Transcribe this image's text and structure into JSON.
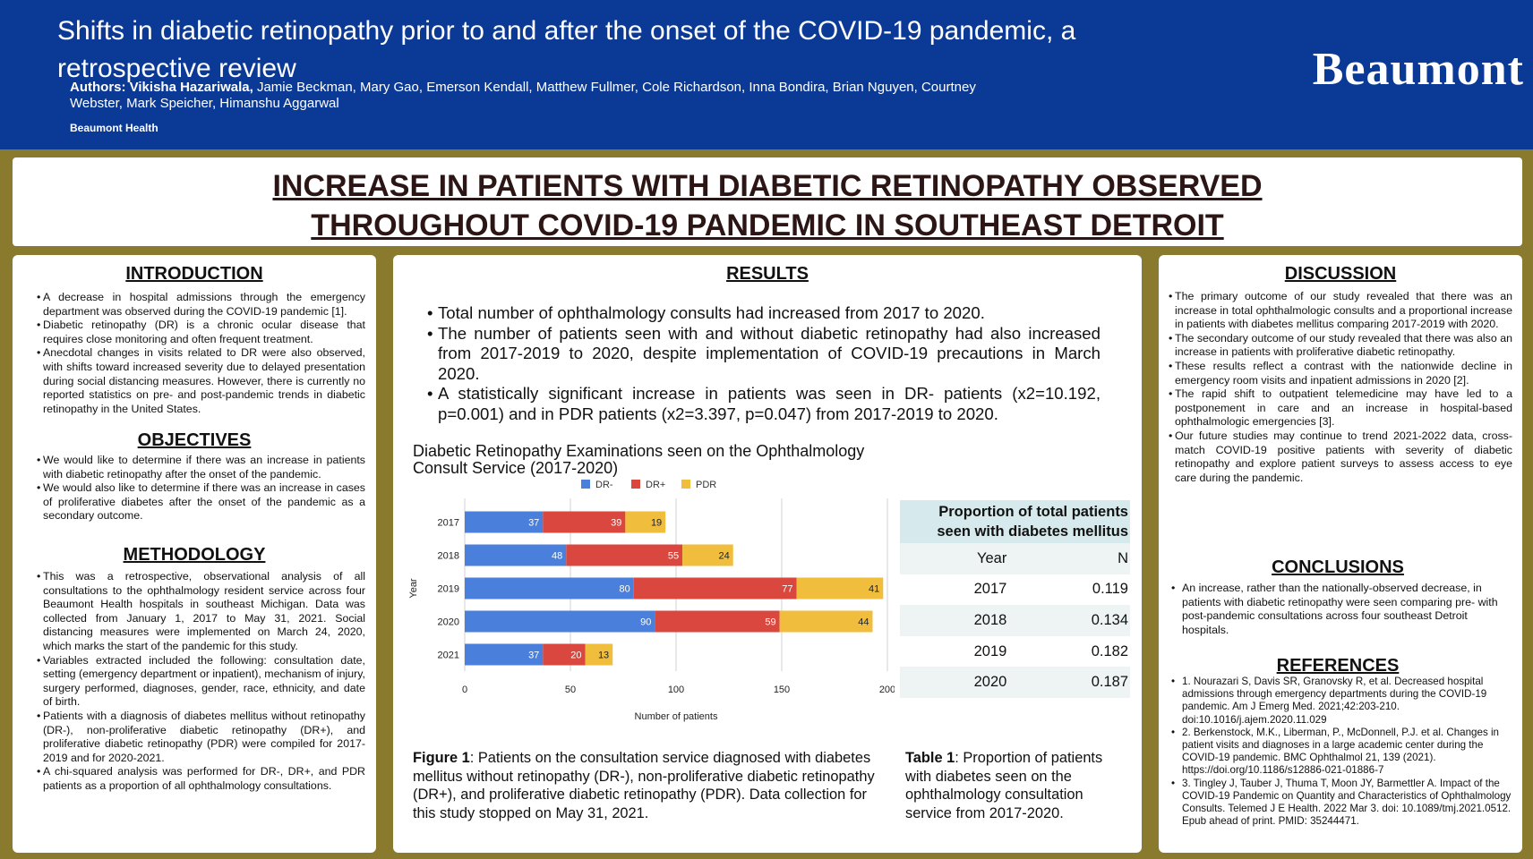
{
  "header": {
    "title": "Shifts in diabetic retinopathy prior to and after the onset of the COVID-19 pandemic, a retrospective review",
    "authors_label": "Authors: Vikisha Hazariwala,",
    "authors_rest": " Jamie Beckman, Mary Gao, Emerson Kendall, Matthew Fullmer, Cole Richardson, Inna Bondira, Brian Nguyen, Courtney Webster, Mark Speicher, Himanshu Aggarwal",
    "affiliation": "Beaumont Health",
    "logo_text": "Beaumont"
  },
  "banner": {
    "line1": "INCREASE IN PATIENTS WITH DIABETIC RETINOPATHY OBSERVED",
    "line2": "THROUGHOUT COVID-19 PANDEMIC IN SOUTHEAST DETROIT"
  },
  "introduction": {
    "heading": "INTRODUCTION",
    "items": [
      "A decrease in hospital admissions through the emergency department was observed during the COVID-19 pandemic [1].",
      "Diabetic retinopathy (DR) is a chronic ocular disease that requires close monitoring and often frequent treatment.",
      "Anecdotal changes in visits related to DR were also observed, with shifts toward increased severity due to delayed presentation during social distancing measures. However, there is currently no reported statistics on pre- and post-pandemic trends in diabetic retinopathy in the United States."
    ]
  },
  "objectives": {
    "heading": "OBJECTIVES",
    "items": [
      "We would like to determine if there was an increase in patients with diabetic retinopathy after the onset of the pandemic.",
      "We would also like to determine if there was an increase in cases of proliferative diabetes after the onset of the pandemic as a secondary outcome."
    ]
  },
  "methodology": {
    "heading": "METHODOLOGY",
    "items": [
      "This was a retrospective, observational analysis of all consultations to the ophthalmology resident service across four Beaumont Health hospitals in southeast Michigan. Data was collected from January 1, 2017 to May 31, 2021. Social distancing measures were implemented on March 24, 2020, which marks the start of the pandemic for this study.",
      "Variables extracted included the following: consultation date, setting (emergency department or inpatient), mechanism of injury, surgery performed, diagnoses, gender, race, ethnicity, and date of birth.",
      "Patients with a diagnosis of diabetes mellitus without retinopathy (DR-), non-proliferative diabetic retinopathy (DR+), and proliferative diabetic retinopathy (PDR) were compiled for 2017-2019 and for 2020-2021.",
      "A chi-squared analysis was performed for DR-, DR+, and PDR patients as a proportion of all ophthalmology consultations."
    ]
  },
  "results": {
    "heading": "RESULTS",
    "items": [
      "Total number of ophthalmology consults had increased from 2017 to 2020.",
      "The number of patients seen with and without diabetic retinopathy had also increased from 2017-2019 to 2020, despite implementation of COVID-19 precautions in March 2020.",
      "A statistically significant increase in patients was seen in DR- patients (x2=10.192, p=0.001) and in PDR patients (x2=3.397, p=0.047) from 2017-2019 to 2020."
    ],
    "figure_caption_label": "Figure 1",
    "figure_caption": ": Patients on the consultation service diagnosed with diabetes mellitus without retinopathy (DR-), non-proliferative diabetic retinopathy (DR+), and proliferative diabetic retinopathy (PDR). Data collection for this study stopped on May 31, 2021.",
    "table_caption_label": "Table 1",
    "table_caption": ": Proportion of patients with diabetes seen on the ophthalmology consultation service from 2017-2020."
  },
  "chart_data": {
    "type": "bar",
    "orientation": "horizontal",
    "stacked": true,
    "title": "Diabetic Retinopathy Examinations seen on the Ophthalmology Consult Service (2017-2020)",
    "xlabel": "Number of patients",
    "ylabel": "Year",
    "xlim": [
      0,
      200
    ],
    "xticks": [
      0,
      50,
      100,
      150,
      200
    ],
    "categories": [
      "2017",
      "2018",
      "2019",
      "2020",
      "2021"
    ],
    "series": [
      {
        "name": "DR-",
        "color": "#4a7fdc",
        "values": [
          37,
          48,
          80,
          90,
          37
        ]
      },
      {
        "name": "DR+",
        "color": "#d9473f",
        "values": [
          39,
          55,
          77,
          59,
          20
        ]
      },
      {
        "name": "PDR",
        "color": "#f1bd3d",
        "values": [
          19,
          24,
          41,
          44,
          13
        ]
      }
    ],
    "legend": "top",
    "grid": "vertical"
  },
  "table": {
    "title": "Proportion of total patients seen with diabetes mellitus",
    "headers": [
      "Year",
      "N"
    ],
    "rows": [
      [
        "2017",
        "0.119"
      ],
      [
        "2018",
        "0.134"
      ],
      [
        "2019",
        "0.182"
      ],
      [
        "2020",
        "0.187"
      ]
    ]
  },
  "discussion": {
    "heading": "DISCUSSION",
    "items": [
      "The primary outcome of our study revealed that there was an increase in total ophthalmologic consults and a proportional increase in patients with diabetes mellitus comparing 2017-2019 with 2020.",
      "The secondary outcome of our study revealed that there was also an increase in patients with proliferative diabetic retinopathy.",
      "These results reflect a contrast with the nationwide decline in emergency room visits and inpatient admissions in 2020 [2].",
      "The rapid shift to outpatient telemedicine may have led to a postponement in care and an increase in hospital-based ophthalmologic emergencies [3].",
      "Our future studies may continue to trend 2021-2022 data, cross-match COVID-19 positive patients with severity of diabetic retinopathy and explore patient surveys to assess access to eye care during the pandemic."
    ]
  },
  "conclusions": {
    "heading": "CONCLUSIONS",
    "items": [
      "An increase, rather than the nationally-observed decrease, in patients with diabetic retinopathy were seen comparing pre- with post-pandemic consultations across four southeast Detroit hospitals."
    ]
  },
  "references": {
    "heading": "REFERENCES",
    "items": [
      "1. Nourazari S, Davis SR, Granovsky R, et al. Decreased hospital admissions through emergency departments during the COVID-19 pandemic. Am J Emerg Med. 2021;42:203-210. doi:10.1016/j.ajem.2020.11.029",
      "2. Berkenstock, M.K., Liberman, P., McDonnell, P.J. et al. Changes in patient visits and diagnoses in a large academic center during the COVID-19 pandemic. BMC Ophthalmol 21, 139 (2021). https://doi.org/10.1186/s12886-021-01886-7",
      "3. Tingley J, Tauber J, Thuma T, Moon JY, Barmettler A. Impact of the COVID-19 Pandemic on Quantity and Characteristics of Ophthalmology Consults. Telemed J E Health. 2022 Mar 3. doi: 10.1089/tmj.2021.0512. Epub ahead of print. PMID: 35244471."
    ]
  }
}
